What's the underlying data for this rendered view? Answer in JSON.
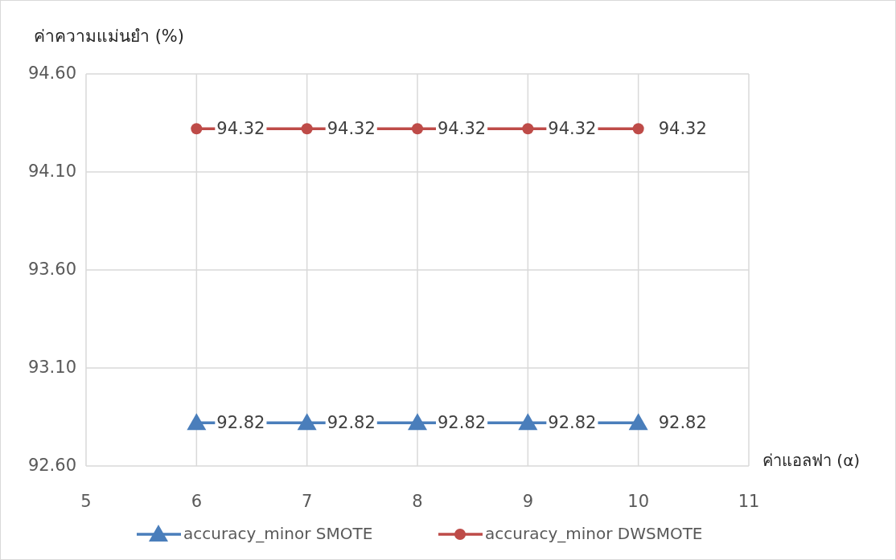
{
  "chart_data": {
    "type": "line",
    "xlabel": "ค่าแอลฟา (α)",
    "ylabel": "ค่าความแม่นยำ (%)",
    "x": [
      6,
      7,
      8,
      9,
      10
    ],
    "series": [
      {
        "name": "accuracy_minor SMOTE",
        "color": "#4a7ebb",
        "marker": "triangle",
        "values": [
          92.82,
          92.82,
          92.82,
          92.82,
          92.82
        ]
      },
      {
        "name": "accuracy_minor DWSMOTE",
        "color": "#be4b48",
        "marker": "circle",
        "values": [
          94.32,
          94.32,
          94.32,
          94.32,
          94.32
        ]
      }
    ],
    "xlim": [
      5,
      11
    ],
    "xticks": [
      5,
      6,
      7,
      8,
      9,
      10,
      11
    ],
    "ylim": [
      92.6,
      94.6
    ],
    "yticks": [
      {
        "value": 92.6,
        "label": "92.60"
      },
      {
        "value": 93.1,
        "label": "93.10"
      },
      {
        "value": 93.6,
        "label": "93.60"
      },
      {
        "value": 94.1,
        "label": "94.10"
      },
      {
        "value": 94.6,
        "label": "94.60"
      }
    ],
    "grid": true,
    "data_labels": true,
    "legend": "bottom",
    "line_style": "solid"
  }
}
